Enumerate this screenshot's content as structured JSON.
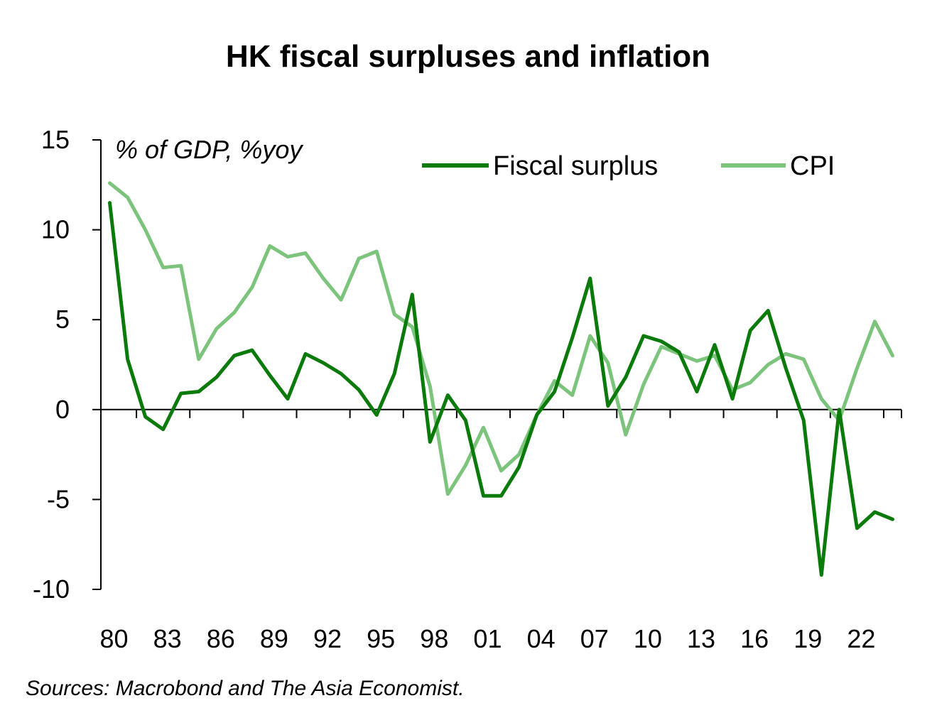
{
  "chart_data": {
    "type": "line",
    "title": "HK fiscal surpluses and inflation",
    "unit_label": "% of GDP, %yoy",
    "source": "Sources: Macrobond and The Asia Economist.",
    "x": [
      1980,
      1981,
      1982,
      1983,
      1984,
      1985,
      1986,
      1987,
      1988,
      1989,
      1990,
      1991,
      1992,
      1993,
      1994,
      1995,
      1996,
      1997,
      1998,
      1999,
      2000,
      2001,
      2002,
      2003,
      2004,
      2005,
      2006,
      2007,
      2008,
      2009,
      2010,
      2011,
      2012,
      2013,
      2014,
      2015,
      2016,
      2017,
      2018,
      2019,
      2020,
      2021,
      2022,
      2023,
      2024
    ],
    "x_tick_labels": [
      "80",
      "83",
      "86",
      "89",
      "92",
      "95",
      "98",
      "01",
      "04",
      "07",
      "10",
      "13",
      "16",
      "19",
      "22"
    ],
    "x_tick_years": [
      1980,
      1983,
      1986,
      1989,
      1992,
      1995,
      1998,
      2001,
      2004,
      2007,
      2010,
      2013,
      2016,
      2019,
      2022
    ],
    "xlim": [
      1979.5,
      2024.5
    ],
    "ylim": [
      -10,
      15
    ],
    "y_ticks": [
      15,
      10,
      5,
      0,
      -5,
      -10
    ],
    "legend_position": "top-right",
    "grid": false,
    "series": [
      {
        "name": "Fiscal surplus",
        "color": "#0a7a0a",
        "values": [
          11.5,
          2.8,
          -0.4,
          -1.1,
          0.9,
          1.0,
          1.8,
          3.0,
          3.3,
          1.9,
          0.6,
          3.1,
          2.6,
          2.0,
          1.1,
          -0.3,
          2.0,
          6.4,
          -1.8,
          0.8,
          -0.6,
          -4.8,
          -4.8,
          -3.2,
          -0.3,
          1.0,
          4.0,
          7.3,
          0.2,
          1.8,
          4.1,
          3.8,
          3.2,
          1.0,
          3.6,
          0.6,
          4.4,
          5.5,
          2.3,
          -0.6,
          -9.2,
          0.0,
          -6.6,
          -5.7,
          -6.1
        ]
      },
      {
        "name": "CPI",
        "color": "#7cc47c",
        "values": [
          12.6,
          11.8,
          10.0,
          7.9,
          8.0,
          2.8,
          4.5,
          5.4,
          6.8,
          9.1,
          8.5,
          8.7,
          7.3,
          6.1,
          8.4,
          8.8,
          5.3,
          4.6,
          1.3,
          -4.7,
          -3.1,
          -1.0,
          -3.4,
          -2.5,
          -0.3,
          1.6,
          0.8,
          4.1,
          2.6,
          -1.4,
          1.4,
          3.5,
          3.1,
          2.7,
          3.0,
          1.1,
          1.5,
          2.5,
          3.1,
          2.8,
          0.6,
          -0.6,
          2.3,
          4.9,
          3.0
        ]
      }
    ]
  }
}
